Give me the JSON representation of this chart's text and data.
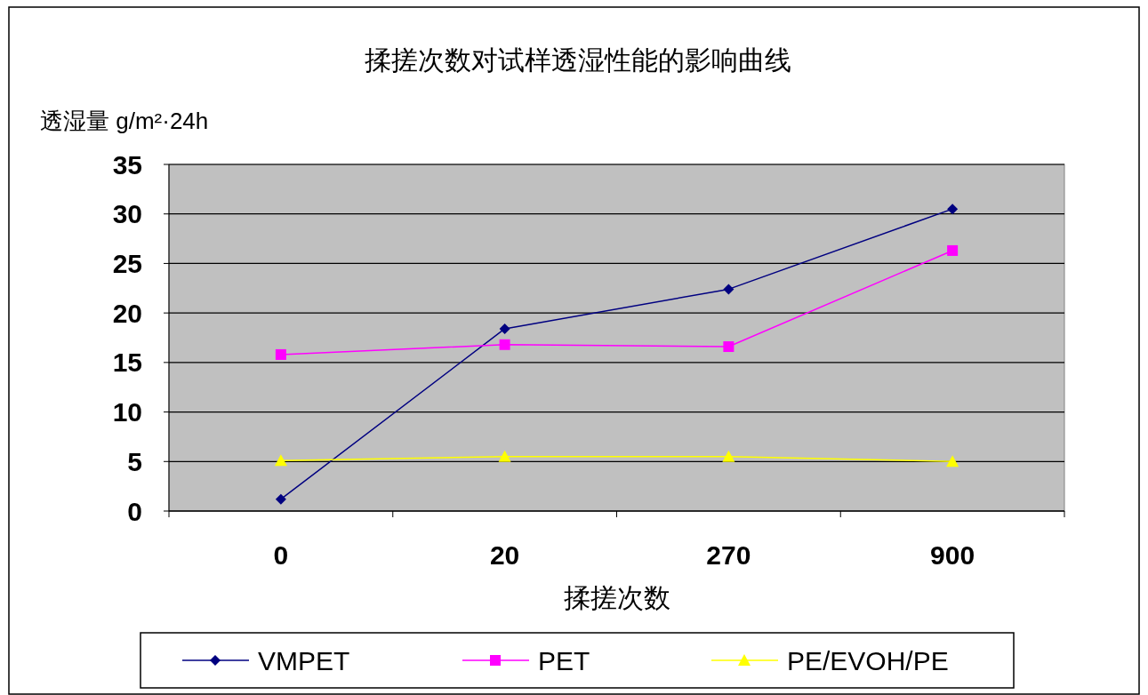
{
  "chart_data": {
    "type": "line",
    "title": "揉搓次数对试样透湿性能的影响曲线",
    "xlabel": "揉搓次数",
    "ylabel": "透湿量 g/m²·24h",
    "categories": [
      "0",
      "20",
      "270",
      "900"
    ],
    "series": [
      {
        "name": "VMPET",
        "color": "#000080",
        "marker": "diamond",
        "values": [
          1.2,
          18.4,
          22.4,
          30.5
        ]
      },
      {
        "name": "PET",
        "color": "#ff00ff",
        "marker": "square",
        "values": [
          15.8,
          16.8,
          16.6,
          26.3
        ]
      },
      {
        "name": "PE/EVOH/PE",
        "color": "#ffff00",
        "marker": "triangle",
        "values": [
          5.1,
          5.5,
          5.5,
          5.0
        ]
      }
    ],
    "ylim": [
      0,
      35
    ],
    "yticks": [
      0,
      5,
      10,
      15,
      20,
      25,
      30,
      35
    ],
    "grid": "y",
    "legend": "bottom"
  }
}
